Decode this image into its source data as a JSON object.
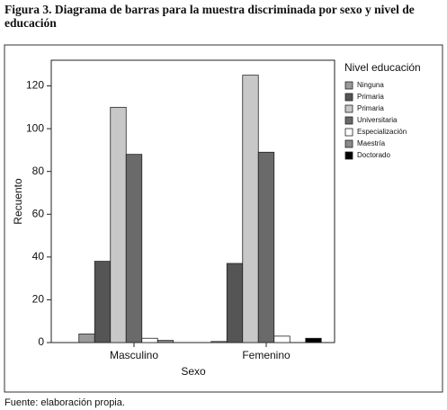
{
  "chart_data": {
    "type": "bar",
    "title": "Figura 3. Diagrama de barras para la muestra discriminada por sexo y nivel de educación",
    "x_label": "Sexo",
    "y_label": "Recuento",
    "legend_title": "Nivel educación",
    "categories": [
      "Masculino",
      "Femenino"
    ],
    "series": [
      {
        "name": "Ninguna",
        "color": "#9a9a9a",
        "values": [
          4,
          0.5
        ]
      },
      {
        "name": "Primaria",
        "color": "#555555",
        "values": [
          38,
          37
        ]
      },
      {
        "name": "Primaria",
        "color": "#c8c8c8",
        "values": [
          110,
          125
        ]
      },
      {
        "name": "Universitaria",
        "color": "#6a6a6a",
        "values": [
          88,
          89
        ]
      },
      {
        "name": "Especialización",
        "color": "#ffffff",
        "values": [
          2,
          3
        ]
      },
      {
        "name": "Maestría",
        "color": "#8a8a8a",
        "values": [
          1,
          0
        ]
      },
      {
        "name": "Doctorado",
        "color": "#000000",
        "values": [
          0,
          2
        ]
      }
    ],
    "ylim": [
      0,
      132
    ],
    "yticks": [
      0,
      20,
      40,
      60,
      80,
      100,
      120
    ],
    "legend": "right",
    "note": "Fuente: elaboración propia."
  }
}
